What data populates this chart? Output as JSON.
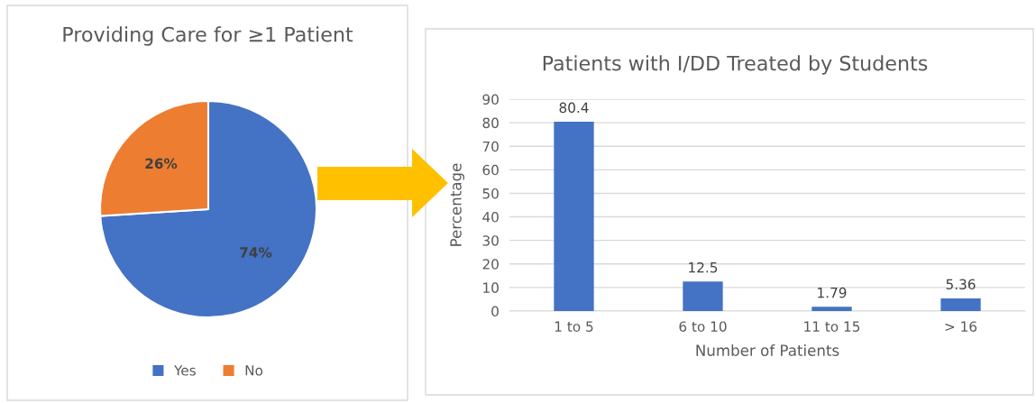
{
  "chart_data": [
    {
      "type": "pie",
      "title": "Providing Care for ≥1 Patient",
      "categories": [
        "Yes",
        "No"
      ],
      "values": [
        74,
        26
      ],
      "colors": [
        "#4472c4",
        "#ed7d31"
      ],
      "value_labels": [
        "74%",
        "26%"
      ],
      "legend": "bottom"
    },
    {
      "type": "bar",
      "title": "Patients with I/DD Treated by Students",
      "xlabel": "Number of Patients",
      "ylabel": "Percentage",
      "categories": [
        "1 to 5",
        "6 to 10",
        "11 to 15",
        "> 16"
      ],
      "series": [
        {
          "color": "#4472c4",
          "values": [
            80.4,
            12.5,
            1.79,
            5.36
          ]
        }
      ],
      "ylim": [
        0,
        90
      ],
      "yticks": [
        0,
        10,
        20,
        30,
        40,
        50,
        60,
        70,
        80,
        90
      ],
      "grid": "y",
      "data_labels": true
    }
  ]
}
